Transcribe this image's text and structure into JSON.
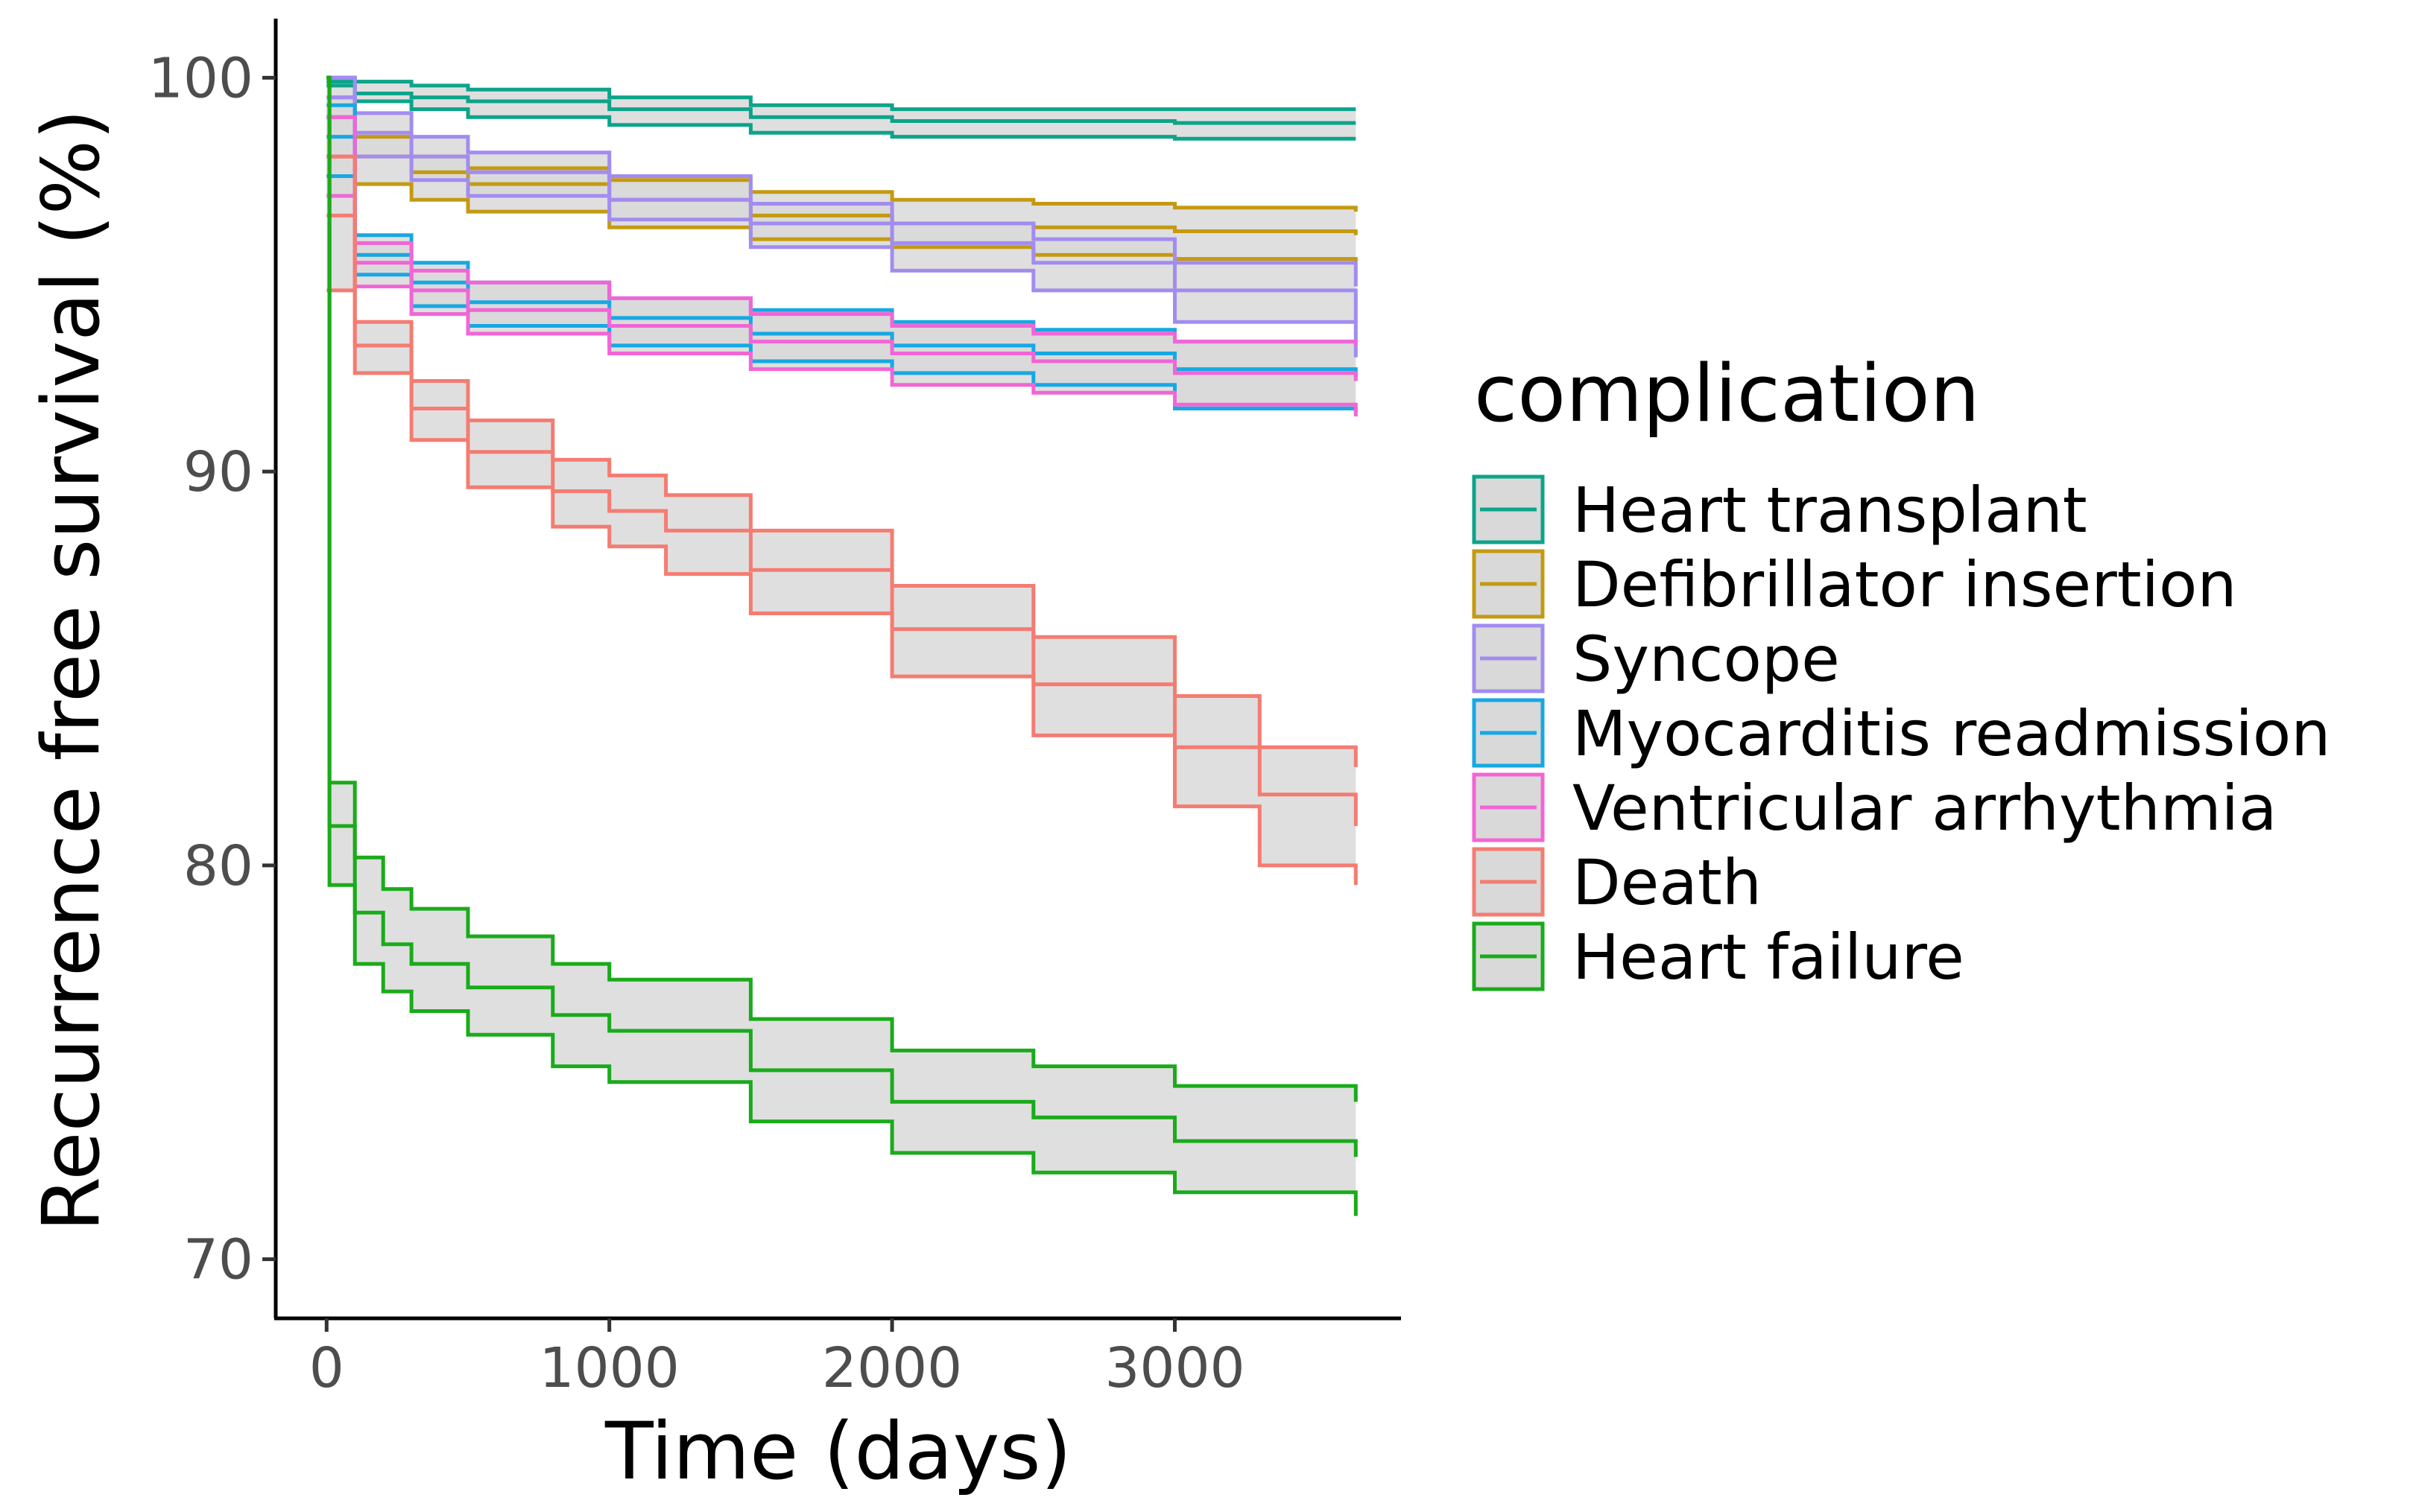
{
  "chart_data": {
    "type": "line",
    "subtype": "kaplan-meier survival with confidence bands",
    "xlabel": "Time (days)",
    "ylabel": "Recurrence free survival (%)",
    "xlim": [
      -180,
      3800
    ],
    "ylim": [
      68.5,
      101.5
    ],
    "xticks": [
      0,
      1000,
      2000,
      3000
    ],
    "yticks": [
      70,
      80,
      90,
      100
    ],
    "legend": {
      "title": "complication",
      "position": "right"
    },
    "band_fill": "#d9d9d9",
    "series": [
      {
        "name": "Heart transplant",
        "color": "#0CA48A",
        "x": [
          0,
          100,
          300,
          500,
          1000,
          1500,
          2000,
          2500,
          3000,
          3640
        ],
        "y": [
          99.9,
          99.6,
          99.5,
          99.4,
          99.2,
          99.0,
          98.9,
          98.9,
          98.85,
          98.85
        ],
        "lower": [
          99.8,
          99.4,
          99.2,
          99.0,
          98.8,
          98.6,
          98.5,
          98.5,
          98.45,
          98.45
        ],
        "upper": [
          100,
          99.9,
          99.8,
          99.7,
          99.5,
          99.3,
          99.2,
          99.2,
          99.2,
          99.2
        ]
      },
      {
        "name": "Defibrillator insertion",
        "color": "#C49A12",
        "x": [
          0,
          100,
          300,
          500,
          1000,
          1500,
          2000,
          2500,
          3000,
          3640
        ],
        "y": [
          99.0,
          98.0,
          97.6,
          97.3,
          96.9,
          96.5,
          96.3,
          96.2,
          96.1,
          96.0
        ],
        "lower": [
          98.0,
          97.3,
          96.9,
          96.6,
          96.2,
          95.9,
          95.7,
          95.5,
          95.4,
          95.3
        ],
        "upper": [
          99.5,
          98.5,
          98.0,
          97.7,
          97.4,
          97.1,
          96.9,
          96.8,
          96.7,
          96.6
        ]
      },
      {
        "name": "Syncope",
        "color": "#A28CF0",
        "x": [
          0,
          100,
          300,
          500,
          1000,
          1500,
          2000,
          2500,
          3000,
          3640
        ],
        "y": [
          99.5,
          98.6,
          98.0,
          97.6,
          96.9,
          96.3,
          95.8,
          95.3,
          94.6,
          93.8
        ],
        "lower": [
          99.0,
          98.0,
          97.4,
          97.0,
          96.4,
          95.7,
          95.1,
          94.6,
          93.8,
          92.9
        ],
        "upper": [
          100,
          99.1,
          98.5,
          98.1,
          97.5,
          96.8,
          96.3,
          95.9,
          95.3,
          94.7
        ]
      },
      {
        "name": "Myocarditis readmission",
        "color": "#17A8E3",
        "x": [
          0,
          100,
          300,
          500,
          1000,
          1500,
          2000,
          2500,
          3000,
          3640
        ],
        "y": [
          98.5,
          95.5,
          94.8,
          94.3,
          93.9,
          93.5,
          93.2,
          93.0,
          92.6,
          92.4
        ],
        "lower": [
          97.5,
          95.0,
          94.2,
          93.7,
          93.2,
          92.8,
          92.5,
          92.2,
          91.6,
          91.5
        ],
        "upper": [
          99.3,
          96.0,
          95.3,
          94.8,
          94.4,
          94.1,
          93.8,
          93.6,
          93.3,
          93.3
        ]
      },
      {
        "name": "Ventricular arrhythmia",
        "color": "#F265D6",
        "x": [
          0,
          100,
          300,
          500,
          1000,
          1500,
          2000,
          2500,
          3000,
          3640
        ],
        "y": [
          98.0,
          95.3,
          94.6,
          94.1,
          93.7,
          93.3,
          93.0,
          92.8,
          92.5,
          92.3
        ],
        "lower": [
          97.0,
          94.7,
          94.0,
          93.5,
          93.0,
          92.6,
          92.2,
          92.0,
          91.7,
          91.4
        ],
        "upper": [
          99.0,
          95.8,
          95.1,
          94.8,
          94.4,
          94.0,
          93.7,
          93.5,
          93.3,
          93.2
        ]
      },
      {
        "name": "Death",
        "color": "#F47C72",
        "x": [
          0,
          100,
          300,
          500,
          800,
          1000,
          1200,
          1500,
          2000,
          2500,
          3000,
          3300,
          3640
        ],
        "y": [
          96.5,
          93.2,
          91.6,
          90.5,
          89.5,
          89.0,
          88.5,
          87.5,
          86.0,
          84.6,
          83.0,
          81.8,
          81.0
        ],
        "lower": [
          94.6,
          92.5,
          90.8,
          89.6,
          88.6,
          88.1,
          87.4,
          86.4,
          84.8,
          83.3,
          81.5,
          80.0,
          79.5
        ],
        "upper": [
          98.0,
          93.8,
          92.3,
          91.3,
          90.3,
          89.9,
          89.4,
          88.5,
          87.1,
          85.8,
          84.3,
          83.0,
          82.5
        ]
      },
      {
        "name": "Heart failure",
        "color": "#1AAB1A",
        "x": [
          0,
          10,
          100,
          200,
          300,
          500,
          800,
          1000,
          1500,
          2000,
          2500,
          3000,
          3640
        ],
        "y": [
          100,
          81.0,
          78.8,
          78.0,
          77.5,
          76.9,
          76.2,
          75.8,
          74.8,
          74.0,
          73.6,
          73.0,
          72.6
        ],
        "lower": [
          100,
          79.5,
          77.5,
          76.8,
          76.3,
          75.7,
          74.9,
          74.5,
          73.5,
          72.7,
          72.2,
          71.7,
          71.1
        ],
        "upper": [
          100,
          82.1,
          80.2,
          79.4,
          78.9,
          78.2,
          77.5,
          77.1,
          76.1,
          75.3,
          74.9,
          74.4,
          74.0
        ]
      }
    ]
  }
}
